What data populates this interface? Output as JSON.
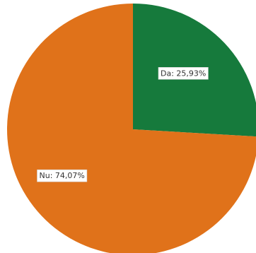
{
  "chart_data": {
    "type": "pie",
    "slices": [
      {
        "label": "Da: 25,93%",
        "value": 25.93,
        "color": "#167a3c"
      },
      {
        "label": "Nu: 74,07%",
        "value": 74.07,
        "color": "#e0721a"
      }
    ]
  }
}
